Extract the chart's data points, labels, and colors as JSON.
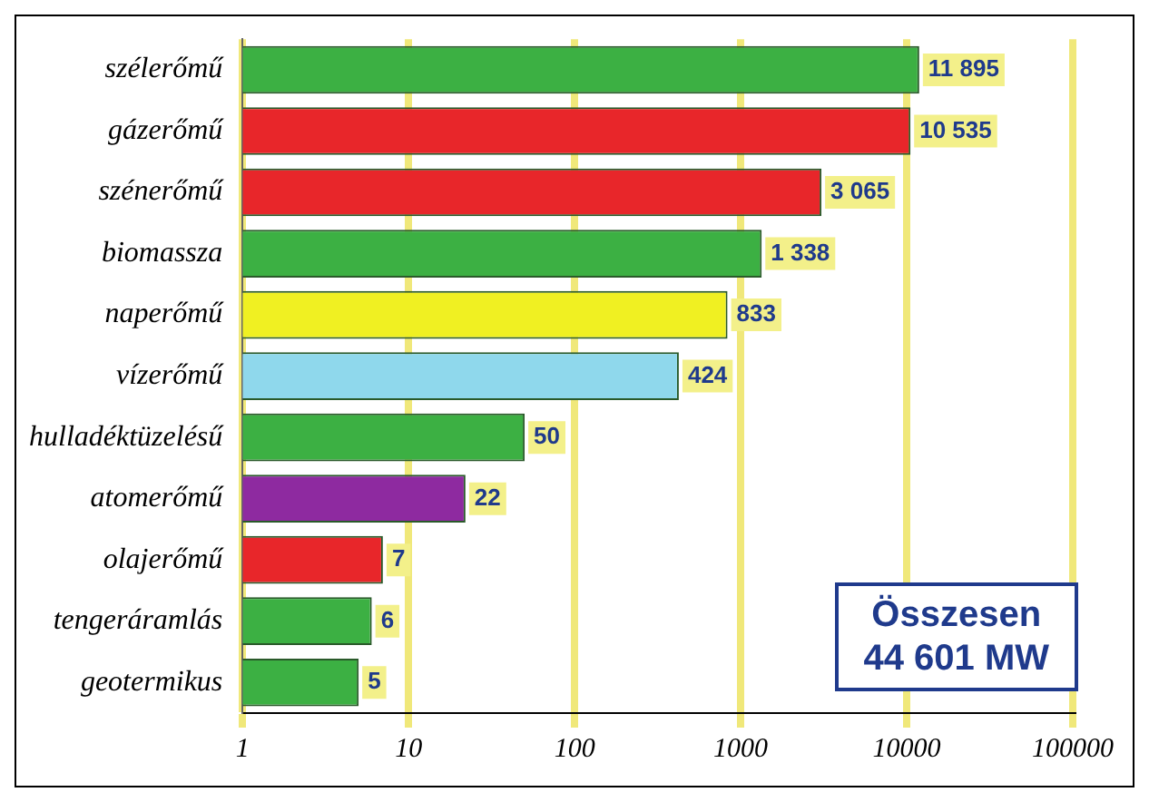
{
  "chart_data": {
    "type": "bar",
    "orientation": "horizontal",
    "log": "x",
    "categories": [
      "szélerőmű",
      "gázerőmű",
      "szénerőmű",
      "biomassza",
      "naperőmű",
      "vízerőmű",
      "hulladéktüzelésű",
      "atomerőmű",
      "olajerőmű",
      "tengeráramlás",
      "geotermikus"
    ],
    "values": [
      11895,
      10535,
      3065,
      1338,
      833,
      424,
      50,
      22,
      7,
      6,
      5
    ],
    "colors": [
      "#3cb043",
      "#e8262a",
      "#e8262a",
      "#3cb043",
      "#f0f022",
      "#8fd8ec",
      "#3cb043",
      "#8e2aa0",
      "#e8262a",
      "#3cb043",
      "#3cb043"
    ],
    "value_labels": [
      "11 895",
      "10 535",
      "3 065",
      "1 338",
      "833",
      "424",
      "50",
      "22",
      "7",
      "6",
      "5"
    ],
    "xlim": [
      1,
      100000
    ],
    "xticks": [
      1,
      10,
      100,
      1000,
      10000,
      100000
    ],
    "grid": "x",
    "annotations": [
      "Összesen\n44 601 MW"
    ]
  }
}
